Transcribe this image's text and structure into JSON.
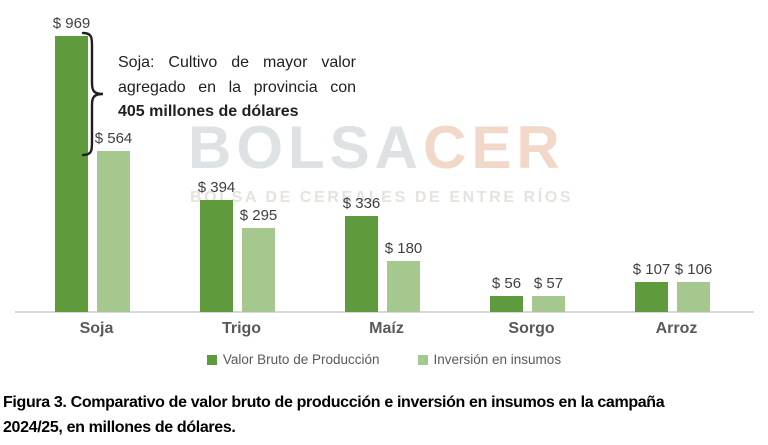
{
  "watermark": {
    "brand_primary": "BOLSA",
    "brand_accent": "CER",
    "subtitle": "BOLSA DE CEREALES DE ENTRE RÍOS",
    "brand_primary_color": "#dee2e4",
    "brand_accent_color": "#f2d8c8"
  },
  "annotation": {
    "line1": "Soja: Cultivo de mayor valor",
    "line2": "agregado en la provincia con",
    "line3": "405 millones de dólares"
  },
  "chart_data": {
    "type": "bar",
    "categories": [
      "Soja",
      "Trigo",
      "Maíz",
      "Sorgo",
      "Arroz"
    ],
    "series": [
      {
        "name": "Valor Bruto de Producción",
        "color": "#5f9a3d",
        "values": [
          969,
          394,
          336,
          56,
          107
        ]
      },
      {
        "name": "Inversión en insumos",
        "color": "#a4c88e",
        "values": [
          564,
          295,
          180,
          57,
          106
        ]
      }
    ],
    "value_label_prefix": "$ ",
    "title": "",
    "xlabel": "",
    "ylabel": "",
    "ylim": [
      0,
      1000
    ],
    "gridlines": false,
    "legend_position": "bottom",
    "axis_line_color": "#d8d8d8"
  },
  "caption": {
    "line1": "Figura 3. Comparativo de valor bruto de producción e inversión en insumos en la campaña",
    "line2": "2024/25, en millones de dólares."
  }
}
